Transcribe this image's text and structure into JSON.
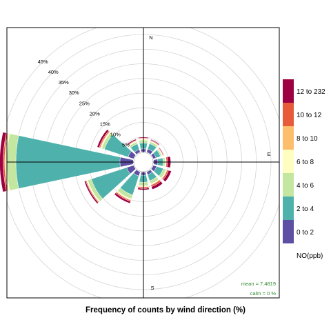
{
  "chart_data": {
    "type": "wind-rose",
    "title": "Frequency of counts by wind direction (%)",
    "compass_labels": [
      "N",
      "E",
      "S"
    ],
    "ring_labels": [
      "5%",
      "10%",
      "15%",
      "20%",
      "25%",
      "30%",
      "35%",
      "40%",
      "45%"
    ],
    "ring_values": [
      5,
      10,
      15,
      20,
      25,
      30,
      35,
      40,
      45
    ],
    "rlim": [
      0,
      45
    ],
    "legend_title": "NO(ppb)",
    "legend_position": "right",
    "bins": [
      {
        "label": "0 to 2",
        "color": "#5e4fa2"
      },
      {
        "label": "2 to 4",
        "color": "#4fb1ac"
      },
      {
        "label": "4 to 6",
        "color": "#c3e6a0"
      },
      {
        "label": "6 to 8",
        "color": "#fefec0"
      },
      {
        "label": "8 to 10",
        "color": "#fdbe6e"
      },
      {
        "label": "10 to 12",
        "color": "#e85b3a"
      },
      {
        "label": "12 to 232",
        "color": "#9e0142"
      }
    ],
    "directions": [
      0,
      30,
      60,
      90,
      120,
      150,
      180,
      210,
      240,
      270,
      300,
      330
    ],
    "cumulative": [
      [
        1.0,
        3.0,
        4.0,
        4.3,
        4.5,
        4.7,
        5.0
      ],
      [
        1.2,
        3.1,
        3.8,
        4.0,
        4.1,
        4.3,
        4.6
      ],
      [
        1.0,
        2.6,
        3.1,
        3.3,
        3.4,
        3.6,
        3.8
      ],
      [
        1.4,
        3.2,
        3.9,
        4.2,
        4.3,
        4.7,
        5.8
      ],
      [
        1.2,
        3.6,
        4.6,
        4.8,
        5.0,
        5.5,
        6.5
      ],
      [
        1.0,
        3.2,
        4.3,
        4.5,
        4.7,
        5.3,
        6.3
      ],
      [
        1.0,
        3.4,
        4.6,
        4.8,
        5.0,
        5.5,
        6.0
      ],
      [
        1.5,
        8.3,
        9.7,
        10.0,
        10.2,
        10.6,
        11.3
      ],
      [
        2.5,
        15.2,
        16.5,
        16.8,
        16.9,
        17.2,
        17.7
      ],
      [
        4.5,
        40.0,
        43.1,
        43.5,
        43.8,
        44.3,
        45.5
      ],
      [
        2.0,
        10.5,
        11.5,
        11.8,
        12.0,
        12.4,
        13.1
      ],
      [
        1.0,
        3.0,
        3.7,
        4.0,
        4.1,
        4.3,
        4.7
      ]
    ],
    "stats": {
      "mean": "mean =  7.4819",
      "calm": "calm =  0 %"
    }
  }
}
